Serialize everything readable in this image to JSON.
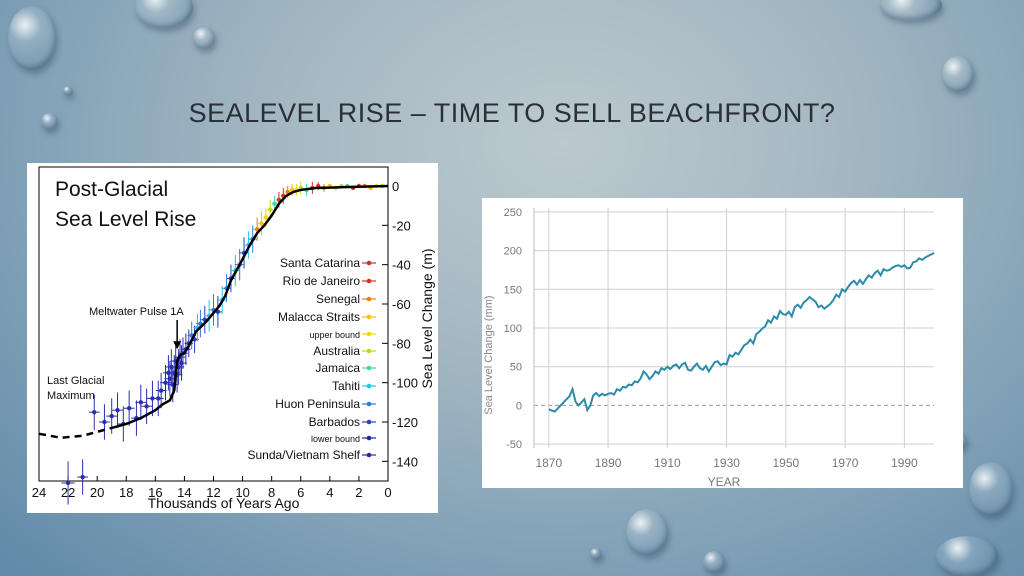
{
  "slide": {
    "title": "SEALEVEL RISE – TIME TO SELL BEACHFRONT?"
  },
  "colors": {
    "background": "#8fadc0",
    "line_right": "#2e8ba8",
    "fit_left": "#000000"
  },
  "chart_data": [
    {
      "type": "scatter",
      "title": "Post-Glacial Sea Level Rise",
      "xlabel": "Thousands of Years Ago",
      "ylabel": "Sea Level Change (m)",
      "x_reversed": true,
      "xlim": [
        24,
        0
      ],
      "ylim": [
        -150,
        0
      ],
      "x_ticks": [
        24,
        22,
        20,
        18,
        16,
        14,
        12,
        10,
        8,
        6,
        4,
        2,
        0
      ],
      "y_ticks": [
        0,
        -20,
        -40,
        -60,
        -80,
        -100,
        -120,
        -140
      ],
      "annotations": [
        {
          "text": "Meltwater Pulse 1A",
          "x": 14.5,
          "y": -83
        },
        {
          "text": "Last Glacial",
          "x": 23,
          "y": -100
        },
        {
          "text": "Maximum",
          "x": 23,
          "y": -100
        }
      ],
      "legend_position": "right",
      "legend": [
        {
          "name": "Santa Catarina",
          "color": "#c0392b"
        },
        {
          "name": "Rio de Janeiro",
          "color": "#d4351c"
        },
        {
          "name": "Senegal",
          "color": "#f07f10"
        },
        {
          "name": "Malacca Straits",
          "color": "#f5c400"
        },
        {
          "name": "upper bound",
          "color": "#f5d800",
          "small": true
        },
        {
          "name": "Australia",
          "color": "#b7e01b"
        },
        {
          "name": "Jamaica",
          "color": "#3fd9a0"
        },
        {
          "name": "Tahiti",
          "color": "#20c8e8"
        },
        {
          "name": "Huon Peninsula",
          "color": "#2a7fd4"
        },
        {
          "name": "Barbados",
          "color": "#2640c8"
        },
        {
          "name": "lower bound",
          "color": "#1b2aa8",
          "small": true
        },
        {
          "name": "Sunda/Vietnam Shelf",
          "color": "#2a2a9a"
        }
      ],
      "fit_curve": [
        [
          24,
          -126
        ],
        [
          22.5,
          -128
        ],
        [
          21,
          -127
        ],
        [
          20,
          -125
        ],
        [
          19,
          -123
        ],
        [
          18,
          -121
        ],
        [
          17,
          -118
        ],
        [
          16,
          -114
        ],
        [
          15.5,
          -111
        ],
        [
          15,
          -109
        ],
        [
          14.7,
          -104
        ],
        [
          14.5,
          -89
        ],
        [
          14.3,
          -86
        ],
        [
          14,
          -85
        ],
        [
          13.6,
          -80
        ],
        [
          13.2,
          -74
        ],
        [
          12.5,
          -69
        ],
        [
          11.6,
          -61
        ],
        [
          11.2,
          -56
        ],
        [
          10.8,
          -48
        ],
        [
          10.2,
          -40
        ],
        [
          9.5,
          -30
        ],
        [
          9,
          -24
        ],
        [
          8.5,
          -20
        ],
        [
          8,
          -15
        ],
        [
          7.5,
          -9
        ],
        [
          7,
          -5
        ],
        [
          6.5,
          -3
        ],
        [
          6,
          -2
        ],
        [
          5,
          -1
        ],
        [
          4,
          -0.8
        ],
        [
          3,
          -0.6
        ],
        [
          2,
          -0.4
        ],
        [
          1,
          -0.2
        ],
        [
          0,
          0
        ]
      ],
      "points": [
        {
          "x": 21,
          "y": -148,
          "s": 9
        },
        {
          "x": 22,
          "y": -151,
          "s": 11
        },
        {
          "x": 20.2,
          "y": -115,
          "s": 9
        },
        {
          "x": 19.5,
          "y": -120,
          "s": 9
        },
        {
          "x": 19,
          "y": -117,
          "s": 9
        },
        {
          "x": 18.6,
          "y": -114,
          "s": 9
        },
        {
          "x": 18.2,
          "y": -121,
          "s": 9
        },
        {
          "x": 17.8,
          "y": -113,
          "s": 9
        },
        {
          "x": 17.3,
          "y": -118,
          "s": 9
        },
        {
          "x": 17,
          "y": -110,
          "s": 9
        },
        {
          "x": 16.6,
          "y": -112,
          "s": 9
        },
        {
          "x": 16.2,
          "y": -108,
          "s": 9
        },
        {
          "x": 15.8,
          "y": -108,
          "s": 9
        },
        {
          "x": 15.6,
          "y": -104,
          "s": 9
        },
        {
          "x": 15.3,
          "y": -100,
          "s": 9
        },
        {
          "x": 15.1,
          "y": -95,
          "s": 9
        },
        {
          "x": 15,
          "y": -98,
          "s": 9
        },
        {
          "x": 14.9,
          "y": -92,
          "s": 9
        },
        {
          "x": 14.8,
          "y": -101,
          "s": 9
        },
        {
          "x": 14.7,
          "y": -95,
          "s": 9
        },
        {
          "x": 14.6,
          "y": -89,
          "s": 9
        },
        {
          "x": 14.5,
          "y": -96,
          "s": 9
        },
        {
          "x": 14.4,
          "y": -92,
          "s": 9
        },
        {
          "x": 14.3,
          "y": -87,
          "s": 9
        },
        {
          "x": 14.2,
          "y": -90,
          "s": 9
        },
        {
          "x": 14.1,
          "y": -85,
          "s": 8
        },
        {
          "x": 13.9,
          "y": -83,
          "s": 8
        },
        {
          "x": 13.7,
          "y": -80,
          "s": 7
        },
        {
          "x": 13.5,
          "y": -76,
          "s": 7
        },
        {
          "x": 13.3,
          "y": -78,
          "s": 7
        },
        {
          "x": 13.1,
          "y": -72,
          "s": 7
        },
        {
          "x": 12.9,
          "y": -70,
          "s": 7
        },
        {
          "x": 12.6,
          "y": -68,
          "s": 7
        },
        {
          "x": 12.3,
          "y": -66,
          "s": 8
        },
        {
          "x": 12,
          "y": -63,
          "s": 8
        },
        {
          "x": 11.7,
          "y": -64,
          "s": 8
        },
        {
          "x": 11.4,
          "y": -58,
          "s": 7
        },
        {
          "x": 11.1,
          "y": -52,
          "s": 7
        },
        {
          "x": 10.8,
          "y": -47,
          "s": 7
        },
        {
          "x": 10.5,
          "y": -43,
          "s": 8
        },
        {
          "x": 10.2,
          "y": -40,
          "s": 8
        },
        {
          "x": 9.9,
          "y": -34,
          "s": 8
        },
        {
          "x": 9.6,
          "y": -30,
          "s": 7
        },
        {
          "x": 9.3,
          "y": -27,
          "s": 7
        },
        {
          "x": 9,
          "y": -22,
          "s": 6
        },
        {
          "x": 8.7,
          "y": -19,
          "s": 6
        },
        {
          "x": 8.4,
          "y": -16,
          "s": 5
        },
        {
          "x": 8.1,
          "y": -12,
          "s": 5
        },
        {
          "x": 7.8,
          "y": -9,
          "s": 4
        },
        {
          "x": 7.5,
          "y": -7,
          "s": 4
        },
        {
          "x": 7.2,
          "y": -5,
          "s": 4
        },
        {
          "x": 6.9,
          "y": -3,
          "s": 3
        },
        {
          "x": 6.6,
          "y": -2,
          "s": 3
        },
        {
          "x": 6.3,
          "y": -2,
          "s": 3
        },
        {
          "x": 6,
          "y": -1,
          "s": 3
        },
        {
          "x": 5.6,
          "y": -2,
          "s": 3
        },
        {
          "x": 5.2,
          "y": -1,
          "s": 3
        },
        {
          "x": 4.8,
          "y": 0,
          "s": 2
        },
        {
          "x": 4.4,
          "y": -1,
          "s": 2
        },
        {
          "x": 4,
          "y": 0,
          "s": 1
        },
        {
          "x": 3.6,
          "y": -1,
          "s": 1
        },
        {
          "x": 3.2,
          "y": 0,
          "s": 1
        },
        {
          "x": 2.8,
          "y": 0,
          "s": 0
        },
        {
          "x": 2.4,
          "y": -1,
          "s": 0
        },
        {
          "x": 2,
          "y": 0,
          "s": 0
        },
        {
          "x": 1.6,
          "y": 0,
          "s": 0
        },
        {
          "x": 1.2,
          "y": -1,
          "s": 0
        },
        {
          "x": 0.8,
          "y": 0,
          "s": 0
        },
        {
          "x": 0.4,
          "y": 0,
          "s": 0
        }
      ]
    },
    {
      "type": "line",
      "xlabel": "YEAR",
      "ylabel": "Sea Level Change (mm)",
      "xlim": [
        1865,
        2000
      ],
      "ylim": [
        -55,
        255
      ],
      "x_ticks": [
        1870,
        1890,
        1910,
        1930,
        1950,
        1970,
        1990
      ],
      "y_ticks": [
        250,
        200,
        150,
        100,
        50,
        0,
        -50
      ],
      "grid": true,
      "zero_line": "dashed",
      "series": [
        {
          "values": [
            [
              1870,
              -5
            ],
            [
              1872,
              -8
            ],
            [
              1874,
              0
            ],
            [
              1876,
              8
            ],
            [
              1877,
              12
            ],
            [
              1878,
              21
            ],
            [
              1879,
              5
            ],
            [
              1880,
              0
            ],
            [
              1882,
              8
            ],
            [
              1883,
              -6
            ],
            [
              1884,
              0
            ],
            [
              1885,
              13
            ],
            [
              1886,
              16
            ],
            [
              1887,
              12
            ],
            [
              1888,
              15
            ],
            [
              1889,
              13
            ],
            [
              1890,
              15
            ],
            [
              1891,
              16
            ],
            [
              1892,
              14
            ],
            [
              1893,
              21
            ],
            [
              1894,
              19
            ],
            [
              1895,
              24
            ],
            [
              1896,
              23
            ],
            [
              1897,
              27
            ],
            [
              1898,
              26
            ],
            [
              1899,
              31
            ],
            [
              1900,
              30
            ],
            [
              1901,
              35
            ],
            [
              1902,
              44
            ],
            [
              1903,
              40
            ],
            [
              1904,
              34
            ],
            [
              1905,
              38
            ],
            [
              1906,
              44
            ],
            [
              1907,
              41
            ],
            [
              1908,
              48
            ],
            [
              1909,
              46
            ],
            [
              1910,
              50
            ],
            [
              1911,
              47
            ],
            [
              1912,
              51
            ],
            [
              1913,
              53
            ],
            [
              1914,
              48
            ],
            [
              1915,
              53
            ],
            [
              1916,
              55
            ],
            [
              1917,
              46
            ],
            [
              1918,
              45
            ],
            [
              1919,
              50
            ],
            [
              1920,
              54
            ],
            [
              1921,
              48
            ],
            [
              1922,
              46
            ],
            [
              1923,
              51
            ],
            [
              1924,
              44
            ],
            [
              1925,
              50
            ],
            [
              1926,
              56
            ],
            [
              1927,
              57
            ],
            [
              1928,
              52
            ],
            [
              1929,
              54
            ],
            [
              1930,
              53
            ],
            [
              1931,
              65
            ],
            [
              1932,
              63
            ],
            [
              1933,
              68
            ],
            [
              1934,
              66
            ],
            [
              1935,
              72
            ],
            [
              1936,
              78
            ],
            [
              1937,
              80
            ],
            [
              1938,
              85
            ],
            [
              1939,
              80
            ],
            [
              1940,
              92
            ],
            [
              1941,
              95
            ],
            [
              1942,
              99
            ],
            [
              1943,
              102
            ],
            [
              1944,
              110
            ],
            [
              1945,
              107
            ],
            [
              1946,
              115
            ],
            [
              1947,
              112
            ],
            [
              1948,
              122
            ],
            [
              1949,
              118
            ],
            [
              1950,
              117
            ],
            [
              1951,
              121
            ],
            [
              1952,
              115
            ],
            [
              1953,
              127
            ],
            [
              1954,
              130
            ],
            [
              1955,
              126
            ],
            [
              1956,
              133
            ],
            [
              1957,
              136
            ],
            [
              1958,
              140
            ],
            [
              1959,
              137
            ],
            [
              1960,
              134
            ],
            [
              1961,
              127
            ],
            [
              1962,
              129
            ],
            [
              1963,
              125
            ],
            [
              1964,
              128
            ],
            [
              1965,
              131
            ],
            [
              1966,
              136
            ],
            [
              1967,
              143
            ],
            [
              1968,
              140
            ],
            [
              1969,
              150
            ],
            [
              1970,
              147
            ],
            [
              1971,
              153
            ],
            [
              1972,
              158
            ],
            [
              1973,
              161
            ],
            [
              1974,
              156
            ],
            [
              1975,
              162
            ],
            [
              1976,
              157
            ],
            [
              1977,
              163
            ],
            [
              1978,
              168
            ],
            [
              1979,
              165
            ],
            [
              1980,
              171
            ],
            [
              1981,
              174
            ],
            [
              1982,
              168
            ],
            [
              1983,
              176
            ],
            [
              1984,
              174
            ],
            [
              1985,
              175
            ],
            [
              1986,
              178
            ],
            [
              1987,
              180
            ],
            [
              1988,
              181
            ],
            [
              1989,
              179
            ],
            [
              1990,
              181
            ],
            [
              1991,
              177
            ],
            [
              1992,
              178
            ],
            [
              1993,
              185
            ],
            [
              1994,
              186
            ],
            [
              1995,
              190
            ],
            [
              1996,
              188
            ],
            [
              1997,
              191
            ],
            [
              1998,
              193
            ],
            [
              1999,
              195
            ],
            [
              2000,
              197
            ]
          ]
        }
      ]
    }
  ]
}
